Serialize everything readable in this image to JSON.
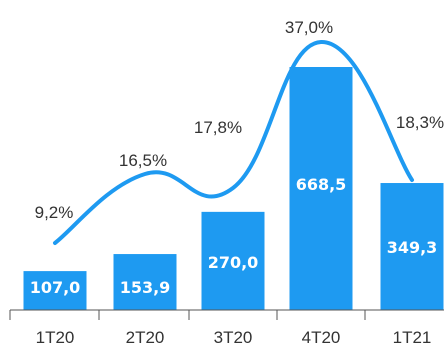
{
  "chart_data": {
    "type": "bar",
    "categories": [
      "1T20",
      "2T20",
      "3T20",
      "4T20",
      "1T21"
    ],
    "values": [
      107.0,
      153.9,
      270.0,
      668.5,
      349.3
    ],
    "value_labels": [
      "107,0",
      "153,9",
      "270,0",
      "668,5",
      "349,3"
    ],
    "line_series": {
      "type": "line",
      "values": [
        9.2,
        16.5,
        17.8,
        37.0,
        18.3
      ],
      "value_labels": [
        "9,2%",
        "16,5%",
        "17,8%",
        "37,0%",
        "18,3%"
      ]
    },
    "ylim": [
      0,
      700
    ],
    "line_ylim": [
      0,
      40
    ],
    "grid": false,
    "legend": "none",
    "colors": {
      "bar": "#1e9af1",
      "line": "#1e9af1",
      "bar_label": "#ffffff",
      "text": "#333333",
      "axis": "#555555"
    }
  }
}
